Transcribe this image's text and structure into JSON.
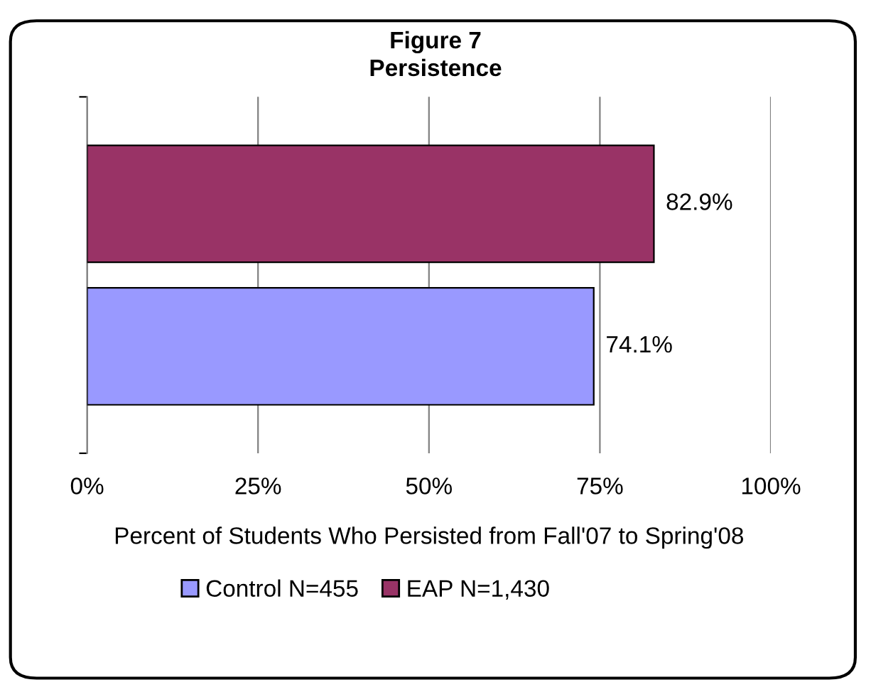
{
  "chart_data": {
    "type": "bar",
    "orientation": "horizontal",
    "title": "Figure 7",
    "subtitle": "Persistence",
    "xlabel": "Percent of Students Who Persisted from Fall'07 to Spring'08",
    "categories": [
      null
    ],
    "series": [
      {
        "name": "Control N=455",
        "color": "#9999ff",
        "values": [
          74.1
        ],
        "value_labels": [
          "74.1%"
        ]
      },
      {
        "name": "EAP N=1,430",
        "color": "#993366",
        "values": [
          82.9
        ],
        "value_labels": [
          "82.9%"
        ]
      }
    ],
    "xlim": [
      0,
      100
    ],
    "xticks": [
      {
        "value": 0,
        "label": "0%"
      },
      {
        "value": 25,
        "label": "25%"
      },
      {
        "value": 50,
        "label": "50%"
      },
      {
        "value": 75,
        "label": "75%"
      },
      {
        "value": 100,
        "label": "100%"
      }
    ],
    "grid": "x",
    "legend": "bottom"
  }
}
